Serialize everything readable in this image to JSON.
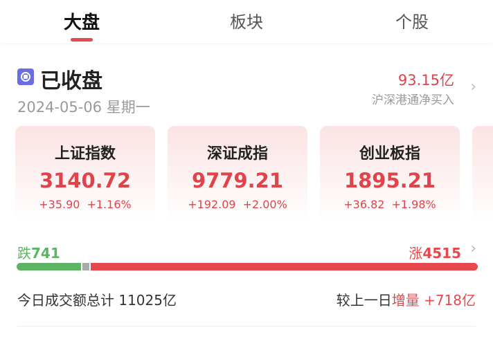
{
  "tabs": [
    {
      "label": "大盘",
      "active": true
    },
    {
      "label": "板块"
    },
    {
      "label": "个股"
    }
  ],
  "market": {
    "status": "已收盘",
    "date": "2024-05-06 星期一",
    "northbound_value": "93.15亿",
    "northbound_label": "沪深港通净买入"
  },
  "indices": [
    {
      "name": "上证指数",
      "value": "3140.72",
      "change": "+35.90",
      "pct": "+1.16%"
    },
    {
      "name": "深证成指",
      "value": "9779.21",
      "change": "+192.09",
      "pct": "+2.00%"
    },
    {
      "name": "创业板指",
      "value": "1895.21",
      "change": "+36.82",
      "pct": "+1.98%"
    }
  ],
  "breadth": {
    "down_label": "跌",
    "down": "741",
    "up_label": "涨",
    "up": "4515"
  },
  "volume": {
    "label": "今日成交额总计",
    "value": "11025亿",
    "compare_label": "较上一日",
    "change_label": "增量",
    "change": "+718亿"
  },
  "colors": {
    "up": "#e5484d",
    "down": "#5cb464",
    "flat": "#aaaaaa",
    "accent": "#6a6ee0"
  }
}
